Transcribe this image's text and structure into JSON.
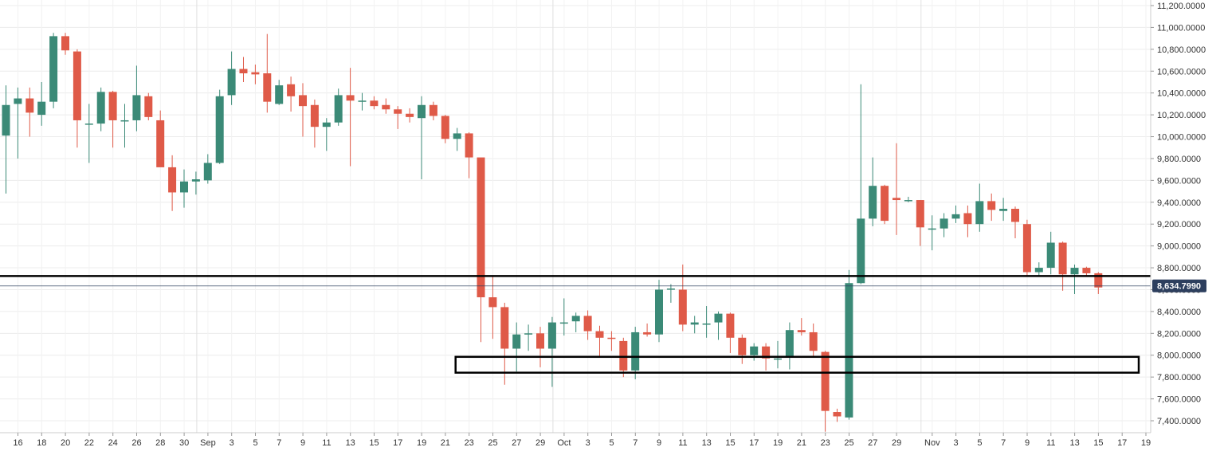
{
  "chart_data": {
    "type": "candlestick",
    "title": "",
    "xlabel": "",
    "ylabel": "",
    "ylim": [
      7300,
      11200
    ],
    "y_ticks": [
      7400,
      7600,
      7800,
      8000,
      8200,
      8400,
      8600,
      8800,
      9000,
      9200,
      9400,
      9600,
      9800,
      10000,
      10200,
      10400,
      10600,
      10800,
      11000,
      11200
    ],
    "y_tick_labels": [
      "7,400.0000",
      "7,600.0000",
      "7,800.0000",
      "8,000.0000",
      "8,200.0000",
      "8,400.0000",
      "8,600.0000",
      "8,800.0000",
      "9,000.0000",
      "9,200.0000",
      "9,400.0000",
      "9,600.0000",
      "9,800.0000",
      "10,000.0000",
      "10,200.0000",
      "10,400.0000",
      "10,600.0000",
      "10,800.0000",
      "11,000.0000",
      "11,200.0000"
    ],
    "x_tick_labels": [
      {
        "i": 0,
        "label": "16"
      },
      {
        "i": 2,
        "label": "18"
      },
      {
        "i": 4,
        "label": "20"
      },
      {
        "i": 6,
        "label": "22"
      },
      {
        "i": 8,
        "label": "24"
      },
      {
        "i": 10,
        "label": "26"
      },
      {
        "i": 12,
        "label": "28"
      },
      {
        "i": 14,
        "label": "30"
      },
      {
        "i": 16,
        "label": "Sep"
      },
      {
        "i": 18,
        "label": "3"
      },
      {
        "i": 20,
        "label": "5"
      },
      {
        "i": 22,
        "label": "7"
      },
      {
        "i": 24,
        "label": "9"
      },
      {
        "i": 26,
        "label": "11"
      },
      {
        "i": 28,
        "label": "13"
      },
      {
        "i": 30,
        "label": "15"
      },
      {
        "i": 32,
        "label": "17"
      },
      {
        "i": 34,
        "label": "19"
      },
      {
        "i": 36,
        "label": "21"
      },
      {
        "i": 38,
        "label": "23"
      },
      {
        "i": 40,
        "label": "25"
      },
      {
        "i": 42,
        "label": "27"
      },
      {
        "i": 44,
        "label": "29"
      },
      {
        "i": 46,
        "label": "Oct"
      },
      {
        "i": 48,
        "label": "3"
      },
      {
        "i": 50,
        "label": "5"
      },
      {
        "i": 52,
        "label": "7"
      },
      {
        "i": 54,
        "label": "9"
      },
      {
        "i": 56,
        "label": "11"
      },
      {
        "i": 58,
        "label": "13"
      },
      {
        "i": 60,
        "label": "15"
      },
      {
        "i": 62,
        "label": "17"
      },
      {
        "i": 64,
        "label": "19"
      },
      {
        "i": 66,
        "label": "21"
      },
      {
        "i": 68,
        "label": "23"
      },
      {
        "i": 70,
        "label": "25"
      },
      {
        "i": 72,
        "label": "27"
      },
      {
        "i": 74,
        "label": "29"
      },
      {
        "i": 77,
        "label": "Nov"
      },
      {
        "i": 79,
        "label": "3"
      },
      {
        "i": 81,
        "label": "5"
      },
      {
        "i": 83,
        "label": "7"
      },
      {
        "i": 85,
        "label": "9"
      },
      {
        "i": 87,
        "label": "11"
      },
      {
        "i": 89,
        "label": "13"
      },
      {
        "i": 91,
        "label": "15"
      },
      {
        "i": 93,
        "label": "17"
      },
      {
        "i": 95,
        "label": "19"
      }
    ],
    "month_separators": [
      16,
      46,
      77
    ],
    "candles": [
      {
        "o": 10010,
        "h": 10470,
        "l": 9480,
        "c": 10290
      },
      {
        "o": 10300,
        "h": 10450,
        "l": 9800,
        "c": 10350
      },
      {
        "o": 10350,
        "h": 10450,
        "l": 10000,
        "c": 10220
      },
      {
        "o": 10200,
        "h": 10500,
        "l": 10100,
        "c": 10320
      },
      {
        "o": 10320,
        "h": 10950,
        "l": 10260,
        "c": 10920
      },
      {
        "o": 10920,
        "h": 10950,
        "l": 10750,
        "c": 10790
      },
      {
        "o": 10780,
        "h": 10800,
        "l": 9900,
        "c": 10150
      },
      {
        "o": 10120,
        "h": 10300,
        "l": 9760,
        "c": 10120
      },
      {
        "o": 10120,
        "h": 10450,
        "l": 10050,
        "c": 10410
      },
      {
        "o": 10410,
        "h": 10420,
        "l": 9900,
        "c": 10150
      },
      {
        "o": 10150,
        "h": 10300,
        "l": 9900,
        "c": 10150
      },
      {
        "o": 10150,
        "h": 10650,
        "l": 10050,
        "c": 10380
      },
      {
        "o": 10370,
        "h": 10400,
        "l": 10150,
        "c": 10180
      },
      {
        "o": 10150,
        "h": 10240,
        "l": 9730,
        "c": 9720
      },
      {
        "o": 9720,
        "h": 9830,
        "l": 9320,
        "c": 9490
      },
      {
        "o": 9490,
        "h": 9700,
        "l": 9350,
        "c": 9590
      },
      {
        "o": 9590,
        "h": 9680,
        "l": 9470,
        "c": 9610
      },
      {
        "o": 9600,
        "h": 9840,
        "l": 9570,
        "c": 9760
      },
      {
        "o": 9760,
        "h": 10430,
        "l": 9750,
        "c": 10370
      },
      {
        "o": 10380,
        "h": 10780,
        "l": 10290,
        "c": 10620
      },
      {
        "o": 10620,
        "h": 10730,
        "l": 10500,
        "c": 10580
      },
      {
        "o": 10590,
        "h": 10660,
        "l": 10480,
        "c": 10570
      },
      {
        "o": 10580,
        "h": 10940,
        "l": 10220,
        "c": 10320
      },
      {
        "o": 10300,
        "h": 10520,
        "l": 10290,
        "c": 10470
      },
      {
        "o": 10480,
        "h": 10550,
        "l": 10230,
        "c": 10370
      },
      {
        "o": 10380,
        "h": 10490,
        "l": 10000,
        "c": 10280
      },
      {
        "o": 10290,
        "h": 10340,
        "l": 9900,
        "c": 10090
      },
      {
        "o": 10090,
        "h": 10170,
        "l": 9870,
        "c": 10130
      },
      {
        "o": 10130,
        "h": 10440,
        "l": 10100,
        "c": 10380
      },
      {
        "o": 10380,
        "h": 10630,
        "l": 9730,
        "c": 10330
      },
      {
        "o": 10330,
        "h": 10400,
        "l": 10240,
        "c": 10330
      },
      {
        "o": 10330,
        "h": 10370,
        "l": 10250,
        "c": 10280
      },
      {
        "o": 10290,
        "h": 10350,
        "l": 10210,
        "c": 10250
      },
      {
        "o": 10250,
        "h": 10280,
        "l": 10070,
        "c": 10210
      },
      {
        "o": 10210,
        "h": 10260,
        "l": 10130,
        "c": 10180
      },
      {
        "o": 10170,
        "h": 10370,
        "l": 9610,
        "c": 10290
      },
      {
        "o": 10290,
        "h": 10320,
        "l": 10150,
        "c": 10190
      },
      {
        "o": 10190,
        "h": 10200,
        "l": 9940,
        "c": 9980
      },
      {
        "o": 9980,
        "h": 10080,
        "l": 9870,
        "c": 10030
      },
      {
        "o": 10030,
        "h": 10040,
        "l": 9620,
        "c": 9810
      },
      {
        "o": 9810,
        "h": 9780,
        "l": 8120,
        "c": 8530
      },
      {
        "o": 8530,
        "h": 8720,
        "l": 8150,
        "c": 8440
      },
      {
        "o": 8440,
        "h": 8480,
        "l": 7730,
        "c": 8060
      },
      {
        "o": 8060,
        "h": 8300,
        "l": 7850,
        "c": 8190
      },
      {
        "o": 8190,
        "h": 8280,
        "l": 8040,
        "c": 8200
      },
      {
        "o": 8200,
        "h": 8260,
        "l": 7890,
        "c": 8060
      },
      {
        "o": 8060,
        "h": 8350,
        "l": 7710,
        "c": 8300
      },
      {
        "o": 8300,
        "h": 8520,
        "l": 8180,
        "c": 8300
      },
      {
        "o": 8310,
        "h": 8390,
        "l": 8210,
        "c": 8360
      },
      {
        "o": 8360,
        "h": 8410,
        "l": 8140,
        "c": 8220
      },
      {
        "o": 8220,
        "h": 8270,
        "l": 7990,
        "c": 8160
      },
      {
        "o": 8160,
        "h": 8220,
        "l": 8040,
        "c": 8150
      },
      {
        "o": 8130,
        "h": 8160,
        "l": 7800,
        "c": 7860
      },
      {
        "o": 7860,
        "h": 8260,
        "l": 7780,
        "c": 8210
      },
      {
        "o": 8210,
        "h": 8290,
        "l": 8170,
        "c": 8190
      },
      {
        "o": 8190,
        "h": 8690,
        "l": 8120,
        "c": 8600
      },
      {
        "o": 8600,
        "h": 8650,
        "l": 8480,
        "c": 8610
      },
      {
        "o": 8600,
        "h": 8830,
        "l": 8220,
        "c": 8280
      },
      {
        "o": 8280,
        "h": 8360,
        "l": 8200,
        "c": 8300
      },
      {
        "o": 8290,
        "h": 8450,
        "l": 8160,
        "c": 8290
      },
      {
        "o": 8300,
        "h": 8400,
        "l": 8140,
        "c": 8380
      },
      {
        "o": 8380,
        "h": 8390,
        "l": 8020,
        "c": 8160
      },
      {
        "o": 8160,
        "h": 8190,
        "l": 7920,
        "c": 8000
      },
      {
        "o": 8000,
        "h": 8110,
        "l": 7950,
        "c": 8080
      },
      {
        "o": 8080,
        "h": 8110,
        "l": 7860,
        "c": 7970
      },
      {
        "o": 7960,
        "h": 8130,
        "l": 7880,
        "c": 7970
      },
      {
        "o": 7980,
        "h": 8300,
        "l": 7870,
        "c": 8230
      },
      {
        "o": 8230,
        "h": 8340,
        "l": 8180,
        "c": 8210
      },
      {
        "o": 8210,
        "h": 8290,
        "l": 7980,
        "c": 8040
      },
      {
        "o": 8030,
        "h": 8040,
        "l": 7300,
        "c": 7490
      },
      {
        "o": 7480,
        "h": 7510,
        "l": 7390,
        "c": 7440
      },
      {
        "o": 7430,
        "h": 8780,
        "l": 7410,
        "c": 8660
      },
      {
        "o": 8660,
        "h": 10480,
        "l": 8650,
        "c": 9250
      },
      {
        "o": 9250,
        "h": 9810,
        "l": 9180,
        "c": 9550
      },
      {
        "o": 9550,
        "h": 9560,
        "l": 9200,
        "c": 9230
      },
      {
        "o": 9440,
        "h": 9940,
        "l": 9100,
        "c": 9420
      },
      {
        "o": 9420,
        "h": 9450,
        "l": 9400,
        "c": 9420
      },
      {
        "o": 9420,
        "h": 9420,
        "l": 9000,
        "c": 9170
      },
      {
        "o": 9160,
        "h": 9280,
        "l": 8960,
        "c": 9160
      },
      {
        "o": 9160,
        "h": 9300,
        "l": 9080,
        "c": 9250
      },
      {
        "o": 9250,
        "h": 9370,
        "l": 9210,
        "c": 9290
      },
      {
        "o": 9300,
        "h": 9370,
        "l": 9080,
        "c": 9200
      },
      {
        "o": 9200,
        "h": 9570,
        "l": 9130,
        "c": 9410
      },
      {
        "o": 9410,
        "h": 9480,
        "l": 9230,
        "c": 9330
      },
      {
        "o": 9320,
        "h": 9440,
        "l": 9230,
        "c": 9340
      },
      {
        "o": 9340,
        "h": 9360,
        "l": 9070,
        "c": 9220
      },
      {
        "o": 9200,
        "h": 9240,
        "l": 8730,
        "c": 8760
      },
      {
        "o": 8760,
        "h": 8850,
        "l": 8720,
        "c": 8800
      },
      {
        "o": 8800,
        "h": 9130,
        "l": 8740,
        "c": 9030
      },
      {
        "o": 9030,
        "h": 9040,
        "l": 8590,
        "c": 8740
      },
      {
        "o": 8740,
        "h": 8830,
        "l": 8560,
        "c": 8800
      },
      {
        "o": 8800,
        "h": 8810,
        "l": 8720,
        "c": 8750
      },
      {
        "o": 8750,
        "h": 8760,
        "l": 8560,
        "c": 8620
      }
    ],
    "horizontal_line": {
      "value": 8725
    },
    "zone": {
      "low": 7840,
      "high": 7985,
      "from_i": 38,
      "to_i": 95
    },
    "last_price": {
      "value": 8634.799,
      "label": "8,634.7990"
    },
    "grid": true,
    "colors": {
      "up": "#3b8a77",
      "down": "#df5a48",
      "wick": "#555555",
      "grid": "#ececec",
      "price_tag": "#2d3f5e",
      "line": "#000000",
      "last_price_line": "#2d3f5e"
    }
  }
}
